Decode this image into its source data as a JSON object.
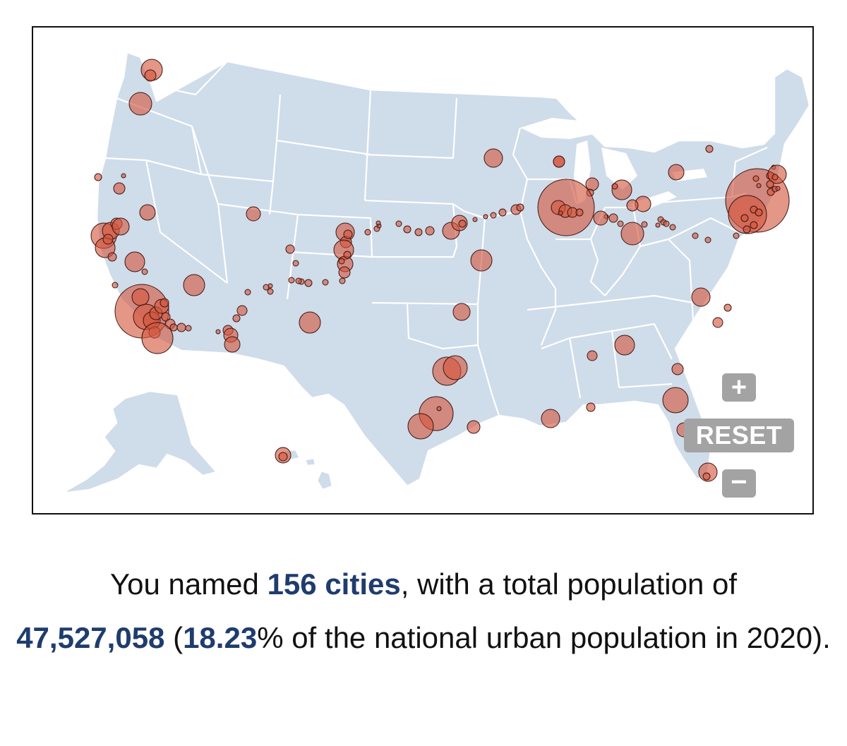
{
  "controls": {
    "zoom_in_label": "+",
    "reset_label": "RESET",
    "zoom_out_label": "−"
  },
  "summary": {
    "prefix": "You named ",
    "cities_count": "156 cities",
    "middle": ", with a total population of ",
    "population": "47,527,058",
    "paren_open": " (",
    "percent": "18.23",
    "suffix": "% of the national urban population in 2020)."
  },
  "colors": {
    "land": "#cfdcea",
    "city_fill": "#d4563e",
    "city_stroke": "#3b1510",
    "highlight_text": "#1f3c6e",
    "button": "#a3a3a3"
  }
}
